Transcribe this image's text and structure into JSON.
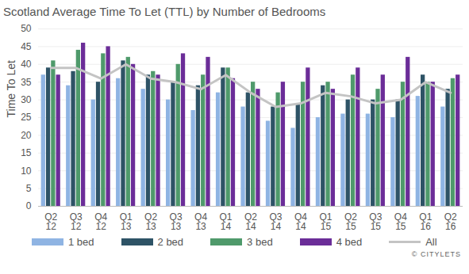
{
  "chart_data": {
    "type": "bar",
    "title": "Scotland Average Time To Let (TTL) by Number of Bedrooms",
    "y_label": "Time To Let",
    "annotations": [
      "© CITYLETS"
    ],
    "categories": [
      "Q2 12",
      "Q3 12",
      "Q4 12",
      "Q1 13",
      "Q2 13",
      "Q3 13",
      "Q4 13",
      "Q1 14",
      "Q2 14",
      "Q3 14",
      "Q4 14",
      "Q1 15",
      "Q2 15",
      "Q3 15",
      "Q4 15",
      "Q1 16",
      "Q2 16"
    ],
    "series": [
      {
        "name": "1 bed",
        "type": "bar",
        "color": "#8fb4e3",
        "values": [
          37,
          34,
          30,
          36,
          33,
          30,
          27,
          32,
          28,
          24,
          22,
          25,
          26,
          26,
          25,
          31,
          28
        ]
      },
      {
        "name": "2 bed",
        "type": "bar",
        "color": "#2e5366",
        "values": [
          39,
          38,
          35,
          41,
          37,
          35,
          34,
          39,
          32,
          28,
          29,
          34,
          30,
          30,
          30,
          37,
          33
        ]
      },
      {
        "name": "3 bed",
        "type": "bar",
        "color": "#4f9a6b",
        "values": [
          41,
          44,
          43,
          42,
          38,
          40,
          37,
          39,
          35,
          32,
          35,
          35,
          37,
          33,
          35,
          35,
          36
        ]
      },
      {
        "name": "4 bed",
        "type": "bar",
        "color": "#6b2d98",
        "values": [
          37,
          46,
          45,
          40,
          37,
          43,
          42,
          36,
          33,
          35,
          39,
          33,
          39,
          37,
          42,
          35,
          37
        ]
      },
      {
        "name": "All",
        "type": "line",
        "color": "#c4c4c4",
        "values": [
          39,
          39,
          36,
          40,
          36,
          35,
          33,
          37,
          32,
          28,
          29,
          32,
          31,
          29,
          30,
          35,
          32
        ]
      }
    ],
    "ylim": [
      0,
      50
    ],
    "yticks": [
      0,
      5,
      10,
      15,
      20,
      25,
      30,
      35,
      40,
      45,
      50
    ],
    "grid": true,
    "legend": "bottom"
  }
}
